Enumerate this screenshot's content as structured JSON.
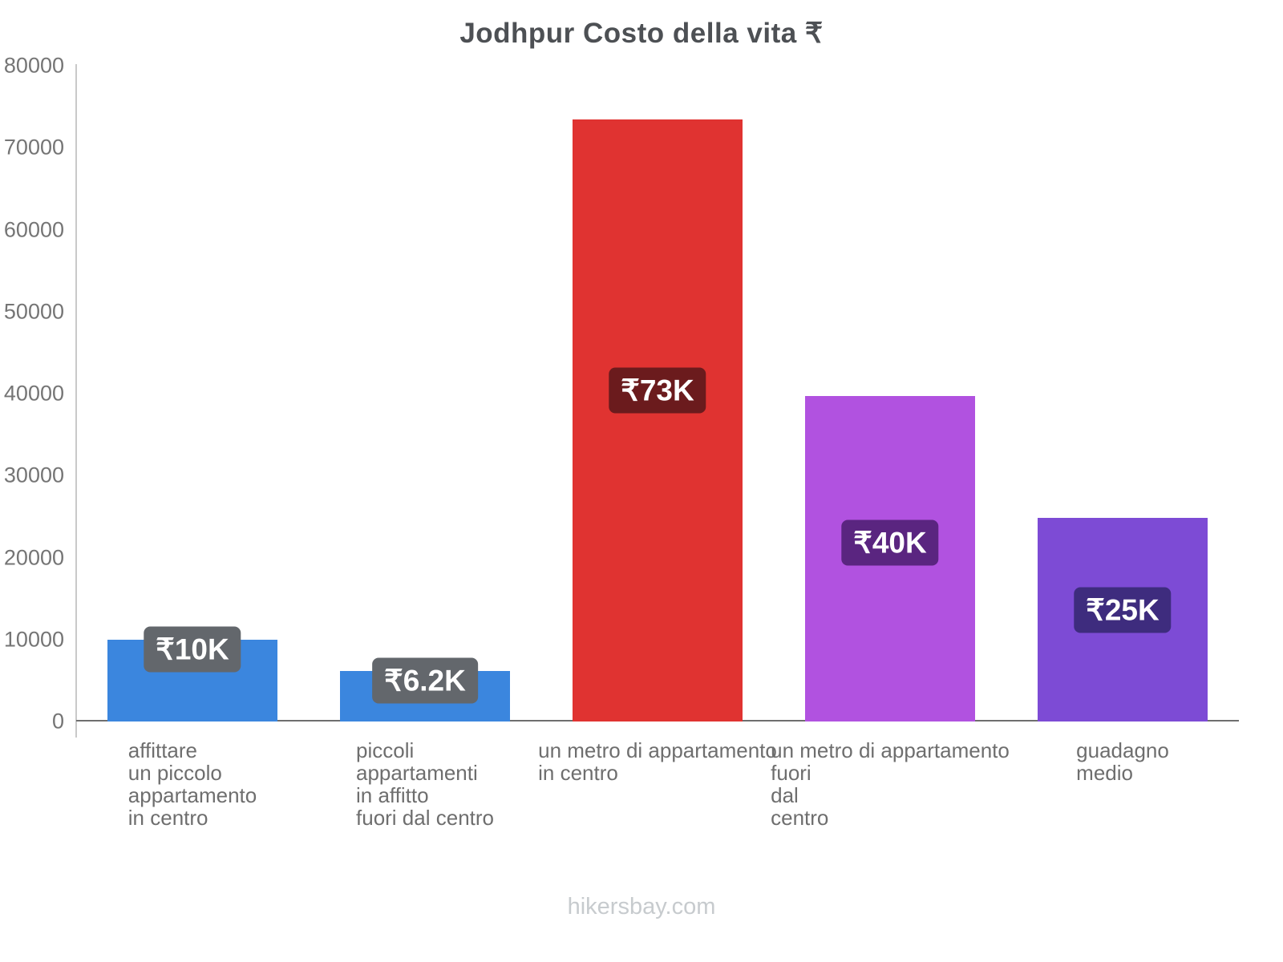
{
  "title": "Jodhpur Costo della vita ₹",
  "footer": "hikersbay.com",
  "chart_data": {
    "type": "bar",
    "title": "Jodhpur Costo della vita ₹",
    "categories": [
      [
        "affittare",
        "un piccolo",
        "appartamento",
        "in centro"
      ],
      [
        "piccoli",
        "appartamenti",
        "in affitto",
        "fuori dal centro"
      ],
      [
        "un metro di appartamento",
        "in centro"
      ],
      [
        "un metro di appartamento",
        "fuori",
        "dal",
        "centro"
      ],
      [
        "guadagno",
        "medio"
      ]
    ],
    "values": [
      10000,
      6200,
      73400,
      39700,
      24800
    ],
    "value_labels": [
      "₹10K",
      "₹6.2K",
      "₹73K",
      "₹40K",
      "₹25K"
    ],
    "bar_colors": [
      "#3b86de",
      "#3b86de",
      "#e03331",
      "#b152e0",
      "#7d4bd5"
    ],
    "label_bg_colors": [
      "#63676c",
      "#63676c",
      "#6b1b1d",
      "#5a2580",
      "#3e2c7e"
    ],
    "xlabel": "",
    "ylabel": "",
    "ylim": [
      0,
      80000
    ],
    "yticks": [
      0,
      10000,
      20000,
      30000,
      40000,
      50000,
      60000,
      70000,
      80000
    ],
    "grid": false,
    "legend": false,
    "currency": "₹"
  }
}
